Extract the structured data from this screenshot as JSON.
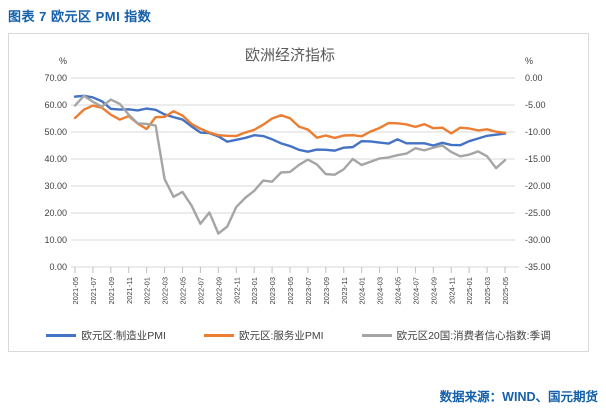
{
  "page": {
    "header_title": "图表 7  欧元区 PMI 指数",
    "footer_source": "数据来源：WIND、国元期货"
  },
  "colors": {
    "accent_blue": "#1460AA",
    "border_gray": "#D9D9D9",
    "grid_gray": "#D9D9D9",
    "tick_gray": "#BFBFBF",
    "title_gray": "#595959",
    "axis_text": "#404040"
  },
  "chart_data": {
    "type": "line",
    "title": "欧洲经济指标",
    "legend_position": "bottom",
    "grid": true,
    "left_axis": {
      "unit": "%",
      "min": 0,
      "max": 70,
      "ticks": [
        "70.00",
        "60.00",
        "50.00",
        "40.00",
        "30.00",
        "20.00",
        "10.00",
        "0.00"
      ]
    },
    "right_axis": {
      "unit": "%",
      "min": -35,
      "max": 0,
      "ticks": [
        "0.00",
        "-5.00",
        "-10.00",
        "-15.00",
        "-20.00",
        "-25.00",
        "-30.00",
        "-35.00"
      ]
    },
    "x": [
      "2021-05",
      "2021-06",
      "2021-07",
      "2021-08",
      "2021-09",
      "2021-10",
      "2021-11",
      "2021-12",
      "2022-01",
      "2022-02",
      "2022-03",
      "2022-04",
      "2022-05",
      "2022-06",
      "2022-07",
      "2022-08",
      "2022-09",
      "2022-10",
      "2022-11",
      "2022-12",
      "2023-01",
      "2023-02",
      "2023-03",
      "2023-04",
      "2023-05",
      "2023-06",
      "2023-07",
      "2023-08",
      "2023-09",
      "2023-10",
      "2023-11",
      "2023-12",
      "2024-01",
      "2024-02",
      "2024-03",
      "2024-04",
      "2024-05",
      "2024-06",
      "2024-07",
      "2024-08",
      "2024-09",
      "2024-10",
      "2024-11",
      "2024-12",
      "2025-01",
      "2025-02",
      "2025-03",
      "2025-04",
      "2025-05"
    ],
    "x_labels": [
      "2021-05",
      "2021-07",
      "2021-09",
      "2021-11",
      "2022-01",
      "2022-03",
      "2022-05",
      "2022-07",
      "2022-09",
      "2022-11",
      "2023-01",
      "2023-03",
      "2023-05",
      "2023-07",
      "2023-09",
      "2023-11",
      "2024-01",
      "2024-03",
      "2024-05",
      "2024-07",
      "2024-09",
      "2024-11",
      "2025-01",
      "2025-03",
      "2025-05"
    ],
    "series": [
      {
        "name": "欧元区:制造业PMI",
        "axis": "left",
        "color": "#4472C4",
        "values": [
          63.1,
          63.4,
          62.8,
          61.4,
          58.6,
          58.3,
          58.4,
          58.0,
          58.7,
          58.2,
          56.5,
          55.5,
          54.6,
          52.1,
          49.8,
          49.6,
          48.4,
          46.4,
          47.1,
          47.8,
          48.8,
          48.5,
          47.3,
          45.8,
          44.8,
          43.4,
          42.7,
          43.5,
          43.4,
          43.1,
          44.2,
          44.4,
          46.6,
          46.5,
          46.1,
          45.7,
          47.3,
          45.8,
          45.8,
          45.8,
          45.0,
          46.0,
          45.2,
          45.1,
          46.6,
          47.6,
          48.6,
          49.0,
          49.4
        ]
      },
      {
        "name": "欧元区:服务业PMI",
        "axis": "left",
        "color": "#ED7D31",
        "values": [
          55.2,
          58.3,
          59.8,
          59.0,
          56.4,
          54.6,
          55.9,
          53.1,
          51.1,
          55.5,
          55.6,
          57.7,
          56.1,
          53.0,
          51.2,
          49.8,
          48.8,
          48.6,
          48.5,
          49.8,
          50.8,
          52.7,
          55.0,
          56.2,
          55.1,
          52.0,
          50.9,
          47.9,
          48.7,
          47.8,
          48.7,
          48.8,
          48.4,
          50.2,
          51.5,
          53.3,
          53.2,
          52.8,
          51.9,
          52.9,
          51.4,
          51.6,
          49.5,
          51.6,
          51.3,
          50.6,
          51.0,
          50.1,
          49.7
        ]
      },
      {
        "name": "欧元区20国:消费者信心指数:季调",
        "axis": "right",
        "color": "#A5A5A5",
        "values": [
          -5.1,
          -3.3,
          -4.4,
          -5.3,
          -4.0,
          -4.8,
          -6.8,
          -8.4,
          -8.5,
          -8.8,
          -18.7,
          -22.0,
          -21.1,
          -23.6,
          -27.0,
          -24.9,
          -28.8,
          -27.5,
          -23.9,
          -22.2,
          -20.9,
          -19.0,
          -19.2,
          -17.5,
          -17.4,
          -16.1,
          -15.1,
          -16.0,
          -17.8,
          -17.9,
          -16.9,
          -15.0,
          -16.1,
          -15.5,
          -14.9,
          -14.7,
          -14.3,
          -14.0,
          -13.0,
          -13.4,
          -12.9,
          -12.5,
          -13.7,
          -14.5,
          -14.2,
          -13.6,
          -14.5,
          -16.7,
          -15.2
        ]
      }
    ]
  }
}
